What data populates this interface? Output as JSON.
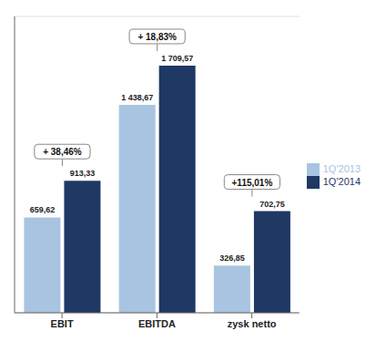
{
  "chart_data": {
    "type": "bar",
    "categories": [
      "EBIT",
      "EBITDA",
      "zysk netto"
    ],
    "series": [
      {
        "name": "1Q'2013",
        "color": "#a8c4e0",
        "values": [
          659.62,
          1438.67,
          326.85
        ],
        "value_labels": [
          "659,62",
          "1 438,67",
          "326,85"
        ]
      },
      {
        "name": "1Q'2014",
        "color": "#1f3864",
        "values": [
          913.33,
          1709.57,
          702.75
        ],
        "value_labels": [
          "913,33",
          "1 709,57",
          "702,75"
        ]
      }
    ],
    "annotations": [
      "+ 38,46%",
      "+ 18,83%",
      "+115,01%"
    ],
    "ylim": [
      0,
      2050
    ],
    "yticks": [
      0,
      400,
      800,
      1200,
      1600,
      2000
    ],
    "grid": true,
    "legend": "right",
    "data_labels": true,
    "tick_labels": "x"
  }
}
